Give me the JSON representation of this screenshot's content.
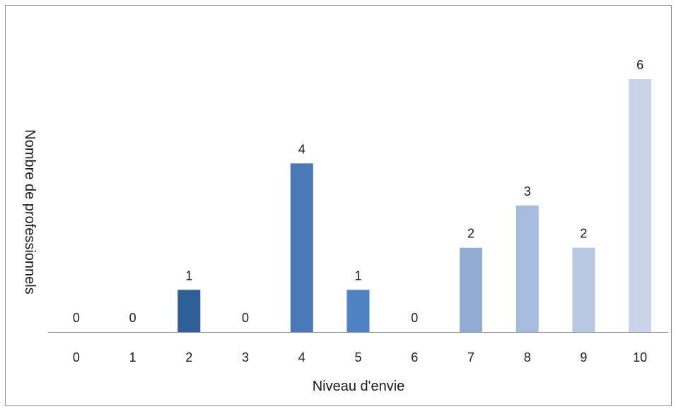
{
  "chart_data": {
    "type": "bar",
    "xlabel": "Niveau d'envie",
    "ylabel": "Nombre de professionnels",
    "categories": [
      "0",
      "1",
      "2",
      "3",
      "4",
      "5",
      "6",
      "7",
      "8",
      "9",
      "10"
    ],
    "values": [
      0,
      0,
      1,
      0,
      4,
      1,
      0,
      2,
      3,
      2,
      6
    ],
    "ylim": [
      0,
      6
    ],
    "grid": false,
    "data_labels": true,
    "bar_colors": [
      "#2e5f96",
      "#2e5f96",
      "#2e5f96",
      "#3e6fa8",
      "#4a7ab5",
      "#4f82c2",
      "#7e9dc8",
      "#93acd3",
      "#a7bcdc",
      "#b8c8e3",
      "#c9d4e8"
    ]
  }
}
